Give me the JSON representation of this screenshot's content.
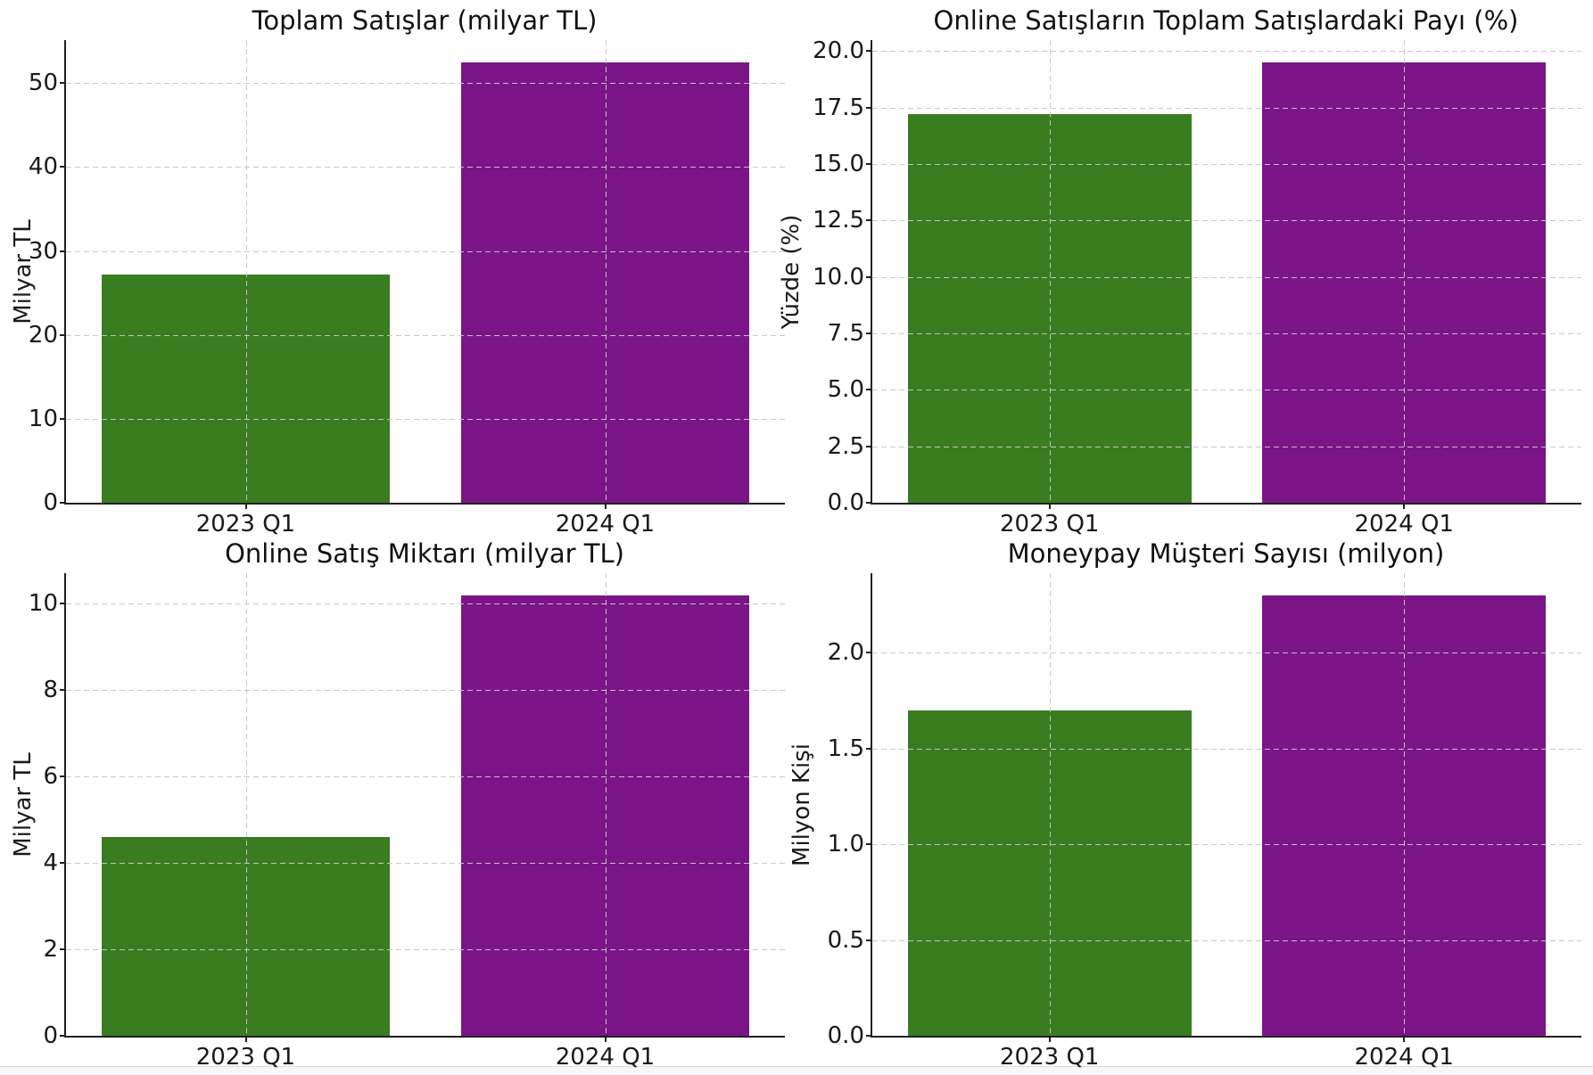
{
  "page": {
    "background": "#ffffff",
    "bottom_strip_color": "#f6f7f8",
    "bar_green": "#3a7d21",
    "bar_purple": "#7b1587"
  },
  "chart_data": [
    {
      "type": "bar",
      "title": "Toplam Satışlar (milyar TL)",
      "ylabel": "Milyar TL",
      "xlabel": "",
      "categories": [
        "2023 Q1",
        "2024 Q1"
      ],
      "values": [
        27.2,
        52.5
      ],
      "bar_colors": [
        "#3a7d21",
        "#7b1587"
      ],
      "yticks": [
        0,
        10,
        20,
        30,
        40,
        50
      ],
      "ytick_labels": [
        "0",
        "10",
        "20",
        "30",
        "40",
        "50"
      ],
      "ylim": [
        0,
        55.13
      ],
      "grid": "dashed-both-axes",
      "legend": null
    },
    {
      "type": "bar",
      "title": "Online Satışların Toplam Satışlardaki Payı (%)",
      "ylabel": "Yüzde (%)",
      "xlabel": "",
      "categories": [
        "2023 Q1",
        "2024 Q1"
      ],
      "values": [
        17.2,
        19.5
      ],
      "bar_colors": [
        "#3a7d21",
        "#7b1587"
      ],
      "yticks": [
        0,
        2.5,
        5,
        7.5,
        10,
        12.5,
        15,
        17.5,
        20
      ],
      "ytick_labels": [
        "0.0",
        "2.5",
        "5.0",
        "7.5",
        "10.0",
        "12.5",
        "15.0",
        "17.5",
        "20.0"
      ],
      "ylim": [
        0,
        20.48
      ],
      "grid": "dashed-both-axes",
      "legend": null
    },
    {
      "type": "bar",
      "title": "Online Satış Miktarı (milyar TL)",
      "ylabel": "Milyar TL",
      "xlabel": "",
      "categories": [
        "2023 Q1",
        "2024 Q1"
      ],
      "values": [
        4.6,
        10.2
      ],
      "bar_colors": [
        "#3a7d21",
        "#7b1587"
      ],
      "yticks": [
        0,
        2,
        4,
        6,
        8,
        10
      ],
      "ytick_labels": [
        "0",
        "2",
        "4",
        "6",
        "8",
        "10"
      ],
      "ylim": [
        0,
        10.71
      ],
      "grid": "dashed-both-axes",
      "legend": null
    },
    {
      "type": "bar",
      "title": "Moneypay Müşteri Sayısı (milyon)",
      "ylabel": "Milyon Kişi",
      "xlabel": "",
      "categories": [
        "2023 Q1",
        "2024 Q1"
      ],
      "values": [
        1.7,
        2.3
      ],
      "bar_colors": [
        "#3a7d21",
        "#7b1587"
      ],
      "yticks": [
        0,
        0.5,
        1.0,
        1.5,
        2.0
      ],
      "ytick_labels": [
        "0.0",
        "0.5",
        "1.0",
        "1.5",
        "2.0"
      ],
      "ylim": [
        0,
        2.415
      ],
      "grid": "dashed-both-axes",
      "legend": null
    }
  ]
}
